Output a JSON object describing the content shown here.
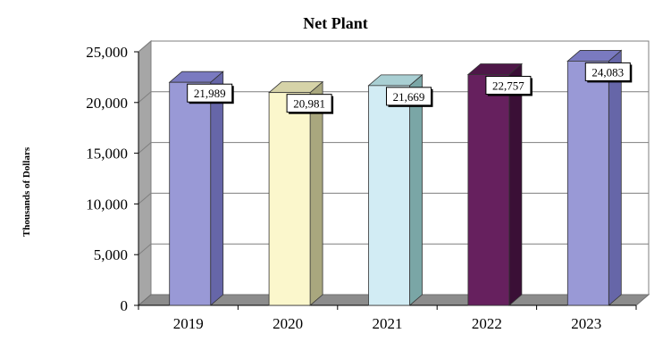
{
  "chart_data": {
    "type": "bar",
    "title": "Net Plant",
    "xlabel": "",
    "ylabel": "Thousands of Dollars",
    "categories": [
      "2019",
      "2020",
      "2021",
      "2022",
      "2023"
    ],
    "values": [
      21989,
      20981,
      21669,
      22757,
      24083
    ],
    "value_labels": [
      "21,989",
      "20,981",
      "21,669",
      "22,757",
      "24,083"
    ],
    "y_ticks": [
      "0",
      "5,000",
      "10,000",
      "15,000",
      "20,000",
      "25,000"
    ],
    "y_tick_values": [
      0,
      5000,
      10000,
      15000,
      20000,
      25000
    ],
    "ylim": [
      0,
      25000
    ],
    "grid": true,
    "legend": "none",
    "bar_colors": [
      {
        "front": "#9999d6",
        "side": "#6666a8",
        "top": "#7a7ac0"
      },
      {
        "front": "#fbf7cc",
        "side": "#a9a77e",
        "top": "#d6d3a8"
      },
      {
        "front": "#d2ecf4",
        "side": "#7aa6a6",
        "top": "#a9cfd3"
      },
      {
        "front": "#66205e",
        "side": "#3a0f36",
        "top": "#4e1748"
      },
      {
        "front": "#9999d6",
        "side": "#6666a8",
        "top": "#7a7ac0"
      }
    ]
  }
}
